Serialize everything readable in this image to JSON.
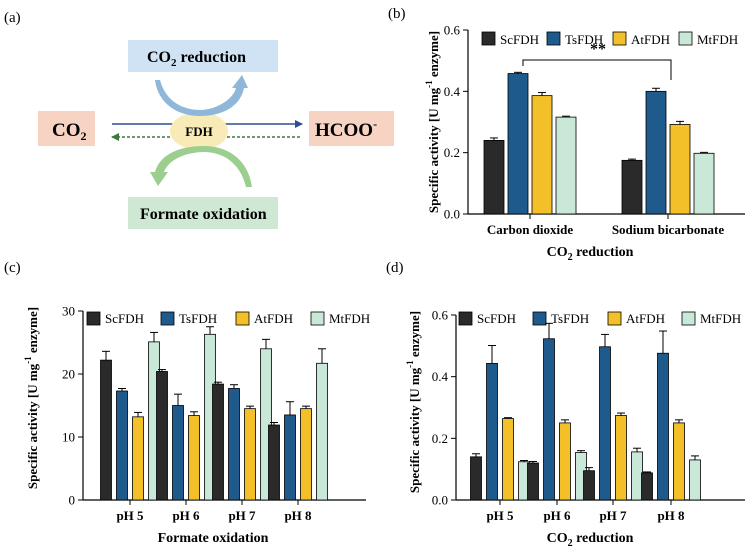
{
  "colors": {
    "ScFDH": "#2a2a2a",
    "TsFDH": "#1f5a8c",
    "AtFDH": "#f4c02a",
    "MtFDH": "#c9e8d7",
    "arrow_blue": "#2e4f8f",
    "arrow_green": "#3b7a3b",
    "box_co2": "#f6d3c2",
    "box_reduction": "#cfe3f4",
    "box_oxidation": "#cfe8d3",
    "fdh_ellipse": "#f8ebb8"
  },
  "diagram": {
    "panel_label": "(a)",
    "co2_label": "CO",
    "co2_sub": "2",
    "reduction_label_a": "CO",
    "reduction_label_sub": "2",
    "reduction_label_b": " reduction",
    "oxidation_label": "Formate oxidation",
    "enzyme_label": "FDH",
    "product_label": "HCOO",
    "product_sup": "-"
  },
  "chart_data": [
    {
      "id": "b",
      "panel_label": "(b)",
      "type": "bar",
      "categories": [
        "Carbon dioxide",
        "Sodium bicarbonate"
      ],
      "series": [
        {
          "name": "ScFDH",
          "values": [
            0.24,
            0.175
          ],
          "errors": [
            0.008,
            0.004
          ]
        },
        {
          "name": "TsFDH",
          "values": [
            0.458,
            0.4
          ],
          "errors": [
            0.004,
            0.01
          ]
        },
        {
          "name": "AtFDH",
          "values": [
            0.386,
            0.292
          ],
          "errors": [
            0.01,
            0.01
          ]
        },
        {
          "name": "MtFDH",
          "values": [
            0.316,
            0.198
          ],
          "errors": [
            0.003,
            0.003
          ]
        }
      ],
      "ylim": [
        0,
        0.6
      ],
      "yticks": [
        "0.0",
        "0.2",
        "0.4",
        "0.6"
      ],
      "ytick_values": [
        0,
        0.2,
        0.4,
        0.6
      ],
      "ylabel_a": "Specific activity [U mg",
      "ylabel_sup": "-1",
      "ylabel_b": " enzyme]",
      "xlabel_a": "CO",
      "xlabel_sub": "2",
      "xlabel_b": " reduction",
      "significance": "**",
      "legend_position": "top"
    },
    {
      "id": "c",
      "panel_label": "(c)",
      "type": "bar",
      "categories": [
        "pH 5",
        "pH 6",
        "pH 7",
        "pH 8"
      ],
      "series": [
        {
          "name": "ScFDH",
          "values": [
            22.2,
            20.4,
            18.4,
            11.9
          ],
          "errors": [
            1.4,
            0.3,
            0.3,
            0.4
          ]
        },
        {
          "name": "TsFDH",
          "values": [
            17.3,
            15.0,
            17.7,
            13.5
          ],
          "errors": [
            0.4,
            1.8,
            0.6,
            2.1
          ]
        },
        {
          "name": "AtFDH",
          "values": [
            13.2,
            13.4,
            14.5,
            14.5
          ],
          "errors": [
            0.7,
            0.6,
            0.4,
            0.4
          ]
        },
        {
          "name": "MtFDH",
          "values": [
            25.1,
            26.3,
            24.0,
            21.7
          ],
          "errors": [
            1.5,
            1.2,
            1.5,
            2.3
          ]
        }
      ],
      "ylim": [
        0,
        30
      ],
      "yticks": [
        "0",
        "10",
        "20",
        "30"
      ],
      "ytick_values": [
        0,
        10,
        20,
        30
      ],
      "ylabel_a": "Specific activity [U mg",
      "ylabel_sup": "-1",
      "ylabel_b": " enzyme]",
      "xlabel": "Formate oxidation",
      "legend_position": "top"
    },
    {
      "id": "d",
      "panel_label": "(d)",
      "type": "bar",
      "categories": [
        "pH 5",
        "pH 6",
        "pH 7",
        "pH 8"
      ],
      "series": [
        {
          "name": "ScFDH",
          "values": [
            0.14,
            0.12,
            0.095,
            0.088
          ],
          "errors": [
            0.01,
            0.005,
            0.01,
            0.003
          ]
        },
        {
          "name": "TsFDH",
          "values": [
            0.443,
            0.523,
            0.497,
            0.476
          ],
          "errors": [
            0.058,
            0.05,
            0.04,
            0.072
          ]
        },
        {
          "name": "AtFDH",
          "values": [
            0.264,
            0.25,
            0.274,
            0.25
          ],
          "errors": [
            0.003,
            0.01,
            0.008,
            0.01
          ]
        },
        {
          "name": "MtFDH",
          "values": [
            0.124,
            0.154,
            0.156,
            0.13
          ],
          "errors": [
            0.004,
            0.006,
            0.012,
            0.013
          ]
        }
      ],
      "ylim": [
        0,
        0.6
      ],
      "yticks": [
        "0.0",
        "0.2",
        "0.4",
        "0.6"
      ],
      "ytick_values": [
        0,
        0.2,
        0.4,
        0.6
      ],
      "ylabel_a": "Specific activity [U mg",
      "ylabel_sup": "-1",
      "ylabel_b": " enzyme]",
      "xlabel_a": "CO",
      "xlabel_sub": "2",
      "xlabel_b": " reduction",
      "legend_position": "top"
    }
  ]
}
